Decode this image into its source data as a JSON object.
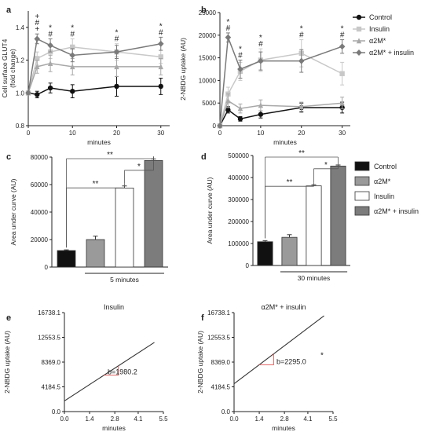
{
  "panels": {
    "a": "a",
    "b": "b",
    "c": "c",
    "d": "d",
    "e": "e",
    "f": "f"
  },
  "legend_top": {
    "items": [
      {
        "name": "Control",
        "color": "#111111",
        "marker": "circle"
      },
      {
        "name": "Insulin",
        "color": "#c8c8c8",
        "marker": "square"
      },
      {
        "name": "α2M*",
        "color": "#a8a8a8",
        "marker": "triangle"
      },
      {
        "name": "α2M* + insulin",
        "color": "#7a7a7a",
        "marker": "diamond"
      }
    ]
  },
  "legend_bars": {
    "items": [
      {
        "name": "Control",
        "color": "#111111"
      },
      {
        "name": "α2M*",
        "color": "#9a9a9a"
      },
      {
        "name": "Insulin",
        "color": "#ffffff"
      },
      {
        "name": "α2M* + insulin",
        "color": "#7c7c7c"
      }
    ]
  },
  "chart_data": [
    {
      "id": "a",
      "type": "line",
      "xlabel": "minutes",
      "ylabel": "Cell surface GLUT4\n(fold change)",
      "xlim": [
        0,
        32
      ],
      "ylim": [
        0.8,
        1.5
      ],
      "xticks": [
        "0",
        "10",
        "20",
        "30"
      ],
      "yticks": [
        "0.8",
        "1.0",
        "1.2",
        "1.4"
      ],
      "x": [
        0,
        2,
        5,
        10,
        20,
        30
      ],
      "series": [
        {
          "name": "Control",
          "values": [
            1.0,
            0.99,
            1.03,
            1.01,
            1.04,
            1.04
          ],
          "err": [
            0.0,
            0.02,
            0.03,
            0.04,
            0.06,
            0.05
          ]
        },
        {
          "name": "Insulin",
          "values": [
            1.0,
            1.21,
            1.25,
            1.28,
            1.25,
            1.22
          ],
          "err": [
            0.0,
            0.04,
            0.04,
            0.05,
            0.05,
            0.04
          ]
        },
        {
          "name": "α2M*",
          "values": [
            1.0,
            1.16,
            1.18,
            1.16,
            1.16,
            1.16
          ],
          "err": [
            0.0,
            0.04,
            0.05,
            0.05,
            0.06,
            0.05
          ]
        },
        {
          "name": "α2M* + insulin",
          "values": [
            1.0,
            1.33,
            1.29,
            1.23,
            1.25,
            1.3
          ],
          "err": [
            0.0,
            0.03,
            0.04,
            0.04,
            0.04,
            0.04
          ]
        }
      ],
      "annotations": [
        {
          "x": 2,
          "lines": [
            "+",
            "#",
            "+"
          ]
        },
        {
          "x": 5,
          "lines": [
            "*",
            "#"
          ]
        },
        {
          "x": 10,
          "lines": [
            "*",
            "#"
          ]
        },
        {
          "x": 20,
          "lines": [
            "*",
            "#"
          ]
        },
        {
          "x": 30,
          "lines": [
            "*",
            "#"
          ]
        }
      ]
    },
    {
      "id": "b",
      "type": "line",
      "xlabel": "minutes",
      "ylabel": "2-NBDG uptake (AU)",
      "xlim": [
        0,
        32
      ],
      "ylim": [
        0,
        25000
      ],
      "xticks": [
        "0",
        "10",
        "20",
        "30"
      ],
      "yticks": [
        "0",
        "5000",
        "10000",
        "15000",
        "20000",
        "25000"
      ],
      "x": [
        0,
        2,
        5,
        10,
        20,
        30
      ],
      "series": [
        {
          "name": "Control",
          "values": [
            0,
            3500,
            1500,
            2500,
            4000,
            4000
          ],
          "err": [
            0,
            700,
            500,
            800,
            1000,
            1200
          ]
        },
        {
          "name": "Insulin",
          "values": [
            0,
            7000,
            12000,
            14500,
            16000,
            11500
          ],
          "err": [
            0,
            1500,
            2000,
            2500,
            3000,
            2500
          ]
        },
        {
          "name": "α2M*",
          "values": [
            0,
            5500,
            3800,
            4500,
            4200,
            5000
          ],
          "err": [
            0,
            1500,
            1000,
            1200,
            1000,
            1300
          ]
        },
        {
          "name": "α2M* + insulin",
          "values": [
            0,
            19500,
            12500,
            14300,
            14300,
            17500
          ],
          "err": [
            0,
            1000,
            2000,
            2000,
            2500,
            1500
          ]
        }
      ],
      "annotations": [
        {
          "x": 2,
          "lines": [
            "*",
            "#"
          ]
        },
        {
          "x": 5,
          "lines": [
            "*",
            "#"
          ]
        },
        {
          "x": 10,
          "lines": [
            "*",
            "#"
          ]
        },
        {
          "x": 20,
          "lines": [
            "*",
            "#"
          ]
        },
        {
          "x": 30,
          "lines": [
            "*",
            "#"
          ]
        }
      ]
    },
    {
      "id": "c",
      "type": "bar",
      "ylabel": "Area under curve (AU)",
      "group_label": "5 minutes",
      "ylim": [
        0,
        80000
      ],
      "yticks": [
        "0",
        "20000",
        "40000",
        "60000",
        "80000"
      ],
      "categories": [
        "Control",
        "α2M*",
        "Insulin",
        "α2M* + insulin"
      ],
      "values": [
        12000,
        20000,
        57500,
        77500
      ],
      "err": [
        500,
        2500,
        1500,
        1200
      ],
      "significance": [
        {
          "from": 0,
          "to": 3,
          "label": "**"
        },
        {
          "from": 0,
          "to": 2,
          "label": "**"
        },
        {
          "from": 2,
          "to": 3,
          "label": "*"
        }
      ]
    },
    {
      "id": "d",
      "type": "bar",
      "ylabel": "Area under curve (AU)",
      "group_label": "30 minutes",
      "ylim": [
        0,
        500000
      ],
      "yticks": [
        "0",
        "100000",
        "200000",
        "300000",
        "400000",
        "500000"
      ],
      "categories": [
        "Control",
        "α2M*",
        "Insulin",
        "α2M* + insulin"
      ],
      "values": [
        108000,
        128000,
        362000,
        452000
      ],
      "err": [
        5000,
        12000,
        5000,
        5000
      ],
      "significance": [
        {
          "from": 0,
          "to": 3,
          "label": "**"
        },
        {
          "from": 0,
          "to": 2,
          "label": "**"
        },
        {
          "from": 2,
          "to": 3,
          "label": "*"
        }
      ]
    },
    {
      "id": "e",
      "type": "line",
      "title": "Insulin",
      "xlabel": "minutes",
      "ylabel": "2-NBDG uptake (AU)",
      "xlim": [
        0,
        5.5
      ],
      "ylim": [
        0,
        16738.1
      ],
      "xticks": [
        "0.0",
        "1.4",
        "2.8",
        "4.1",
        "5.5"
      ],
      "yticks": [
        "0.0",
        "4184.5",
        "8369.0",
        "12553.5",
        "16738.1"
      ],
      "line": {
        "x0": 0,
        "y0": 1800,
        "x1": 5.0,
        "y1": 11700
      },
      "slope_label": "b=1980.2",
      "slope_marker": {
        "x0": 2.2,
        "x1": 3.0
      }
    },
    {
      "id": "f",
      "type": "line",
      "title": "α2M* + insulin",
      "xlabel": "minutes",
      "ylabel": "2-NBDG uptake (AU)",
      "xlim": [
        0,
        5.5
      ],
      "ylim": [
        0,
        16738.1
      ],
      "xticks": [
        "0.0",
        "1.4",
        "2.8",
        "4.1",
        "5.5"
      ],
      "yticks": [
        "0.0",
        "4184.5",
        "8369.0",
        "12553.5",
        "16738.1"
      ],
      "line": {
        "x0": 0,
        "y0": 4700,
        "x1": 5.0,
        "y1": 16200
      },
      "slope_label": "b=2295.0",
      "slope_mark": "*",
      "slope_marker": {
        "x0": 1.4,
        "x1": 2.2
      }
    }
  ]
}
